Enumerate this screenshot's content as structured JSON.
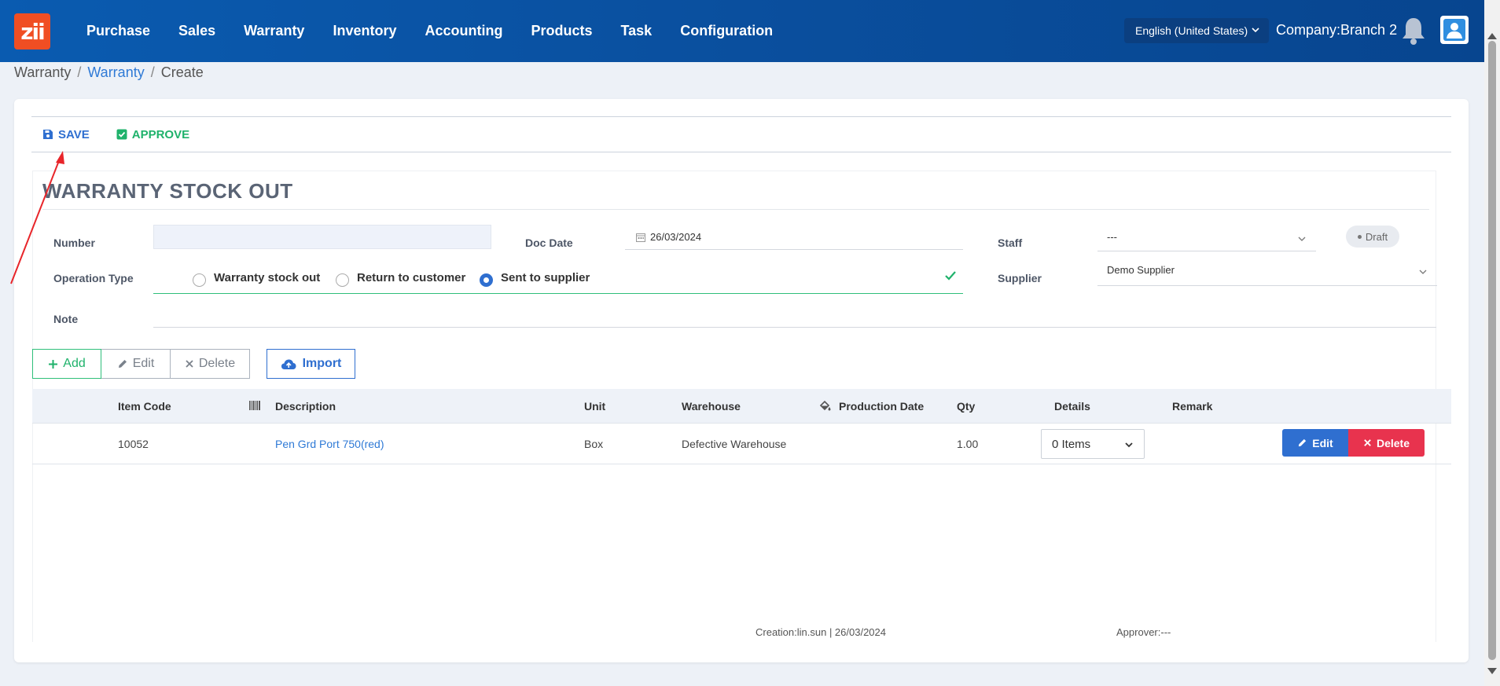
{
  "nav": {
    "logo_text": "zii",
    "items": [
      "Purchase",
      "Sales",
      "Warranty",
      "Inventory",
      "Accounting",
      "Products",
      "Task",
      "Configuration"
    ],
    "language": "English (United States)",
    "company": "Company:Branch 2"
  },
  "breadcrumb": {
    "root": "Warranty",
    "parent": "Warranty",
    "current": "Create"
  },
  "toolbar": {
    "save_label": "SAVE",
    "approve_label": "APPROVE"
  },
  "form": {
    "title": "WARRANTY STOCK OUT",
    "number_label": "Number",
    "number_value": "",
    "doc_date_label": "Doc Date",
    "doc_date_value": "26/03/2024",
    "staff_label": "Staff",
    "staff_value": "---",
    "status": "Draft",
    "operation_type_label": "Operation Type",
    "operation_options": [
      "Warranty stock out",
      "Return to customer",
      "Sent to supplier"
    ],
    "operation_selected": "Sent to supplier",
    "supplier_label": "Supplier",
    "supplier_value": "Demo Supplier",
    "note_label": "Note",
    "note_value": ""
  },
  "actions": {
    "add": "Add",
    "edit": "Edit",
    "delete": "Delete",
    "import": "Import"
  },
  "table": {
    "headers": {
      "item_code": "Item Code",
      "description": "Description",
      "unit": "Unit",
      "warehouse": "Warehouse",
      "production_date": "Production Date",
      "qty": "Qty",
      "details": "Details",
      "remark": "Remark"
    },
    "rows": [
      {
        "item_code": "10052",
        "description": "Pen Grd Port 750(red)",
        "unit": "Box",
        "warehouse": "Defective Warehouse",
        "production_date": "",
        "qty": "1.00",
        "details": "0 Items",
        "remark": "",
        "edit": "Edit",
        "delete": "Delete"
      }
    ]
  },
  "footer": {
    "creation": "Creation:lin.sun | 26/03/2024",
    "approver": "Approver:---"
  },
  "colors": {
    "nav_bg": "#0a4f9e",
    "primary": "#2f6fd0",
    "success": "#1fb26b",
    "danger": "#e8334e",
    "annotation_arrow": "#e8252a"
  }
}
